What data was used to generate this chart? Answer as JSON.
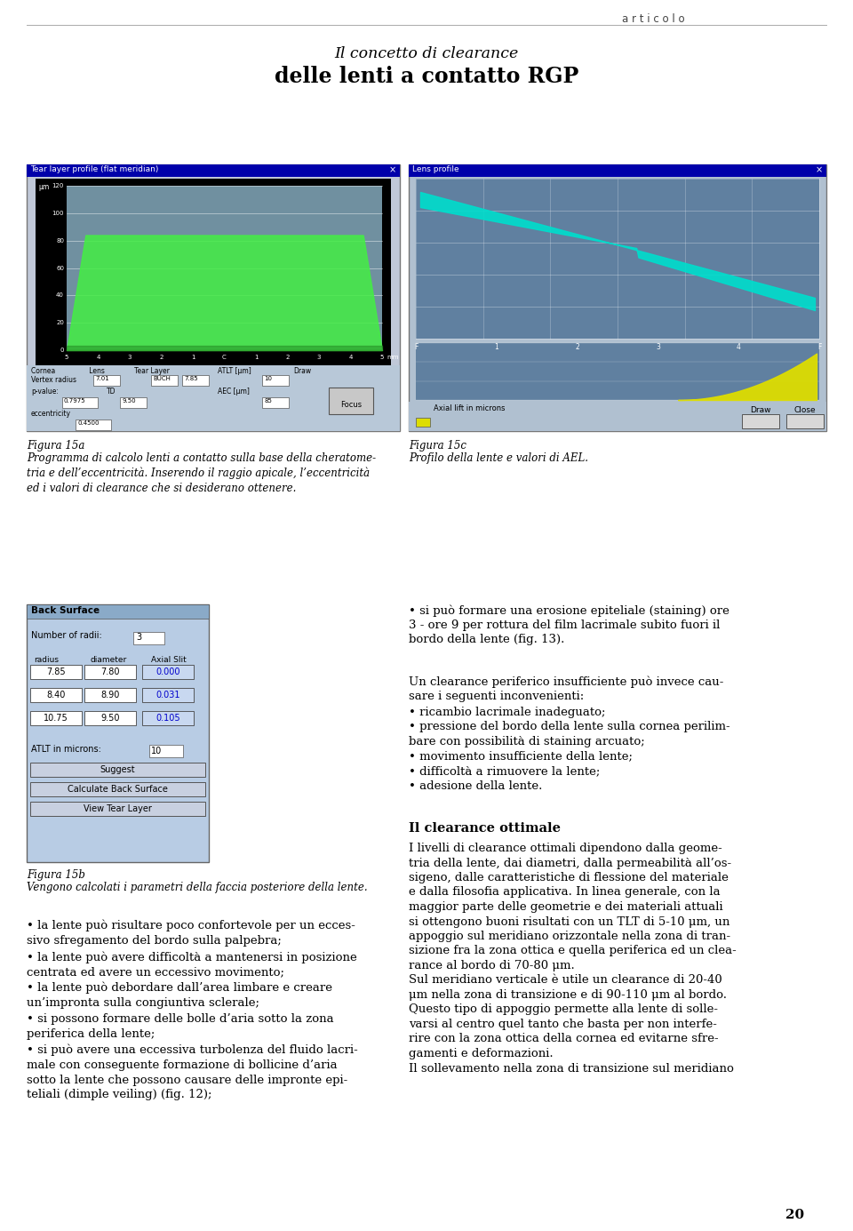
{
  "header_right": "a r t i c o l o",
  "title_italic": "Il concetto di clearance",
  "title_bold": "delle lenti a contatto RGP",
  "fig15a_caption_title": "Figura 15a",
  "fig15a_caption_body": "Programma di calcolo lenti a contatto sulla base della cheratome-\ntria e dell’eccentricità. Inserendo il raggio apicale, l’eccentricità\ned i valori di clearance che si desiderano ottenere.",
  "fig15c_caption_title": "Figura 15c",
  "fig15c_caption_body": "Profilo della lente e valori di AEL.",
  "fig15b_caption_title": "Figura 15b",
  "fig15b_caption_body": "Vengono calcolati i parametri della faccia posteriore della lente.",
  "bullet_text_right_1": "• si può formare una erosione epiteliale (staining) ore\n3 - ore 9 per rottura del film lacrimale subito fuori il\nbordo della lente (fig. 13).",
  "para_clearance_intro": "Un clearance periferico insufficiente può invece cau-\nsare i seguenti inconvenienti:",
  "para_clearance_bullets": "• ricambio lacrimale inadeguato;\n• pressione del bordo della lente sulla cornea perilim-\nbare con possibilità di staining arcuato;\n• movimento insufficiente della lente;\n• difficoltà a rimuovere la lente;\n• adesione della lente.",
  "heading_ottimale": "Il clearance ottimale",
  "para_ottimale": "I livelli di clearance ottimali dipendono dalla geome-\ntria della lente, dai diametri, dalla permeabilità all’os-\nsigeno, dalle caratteristiche di flessione del materiale\ne dalla filosofia applicativa. In linea generale, con la\nmaggior parte delle geometrie e dei materiali attuali\nsi ottengono buoni risultati con un TLT di 5-10 μm, un\nappoggio sul meridiano orizzontale nella zona di tran-\nsizione fra la zona ottica e quella periferica ed un clea-\nrance al bordo di 70-80 μm.\nSul meridiano verticale è utile un clearance di 20-40\nμm nella zona di transizione e di 90-110 μm al bordo.\nQuesto tipo di appoggio permette alla lente di solle-\nvarsi al centro quel tanto che basta per non interfe-\nrire con la zona ottica della cornea ed evitarne sfre-\ngamenti e deformazioni.\nIl sollevamento nella zona di transizione sul meridiano",
  "bullet_left_1": "• la lente può risultare poco confortevole per un ecces-\nsivo sfregamento del bordo sulla palpebra;",
  "bullet_left_2": "• la lente può avere difficoltà a mantenersi in posizione\ncentrata ed avere un eccessivo movimento;",
  "bullet_left_3": "• la lente può debordare dall’area limbare e creare\nun’impronta sulla congiuntiva sclerale;",
  "bullet_left_4": "• si possono formare delle bolle d’aria sotto la zona\nperiferica della lente;",
  "bullet_left_5": "• si può avere una eccessiva turbolenza del fluido lacri-\nmale con conseguente formazione di bollicine d’aria\nsotto la lente che possono causare delle impronte epi-\nteliali (dimple veiling) (fig. 12);",
  "page_number": "20",
  "bg_color": "#ffffff",
  "text_color": "#000000"
}
